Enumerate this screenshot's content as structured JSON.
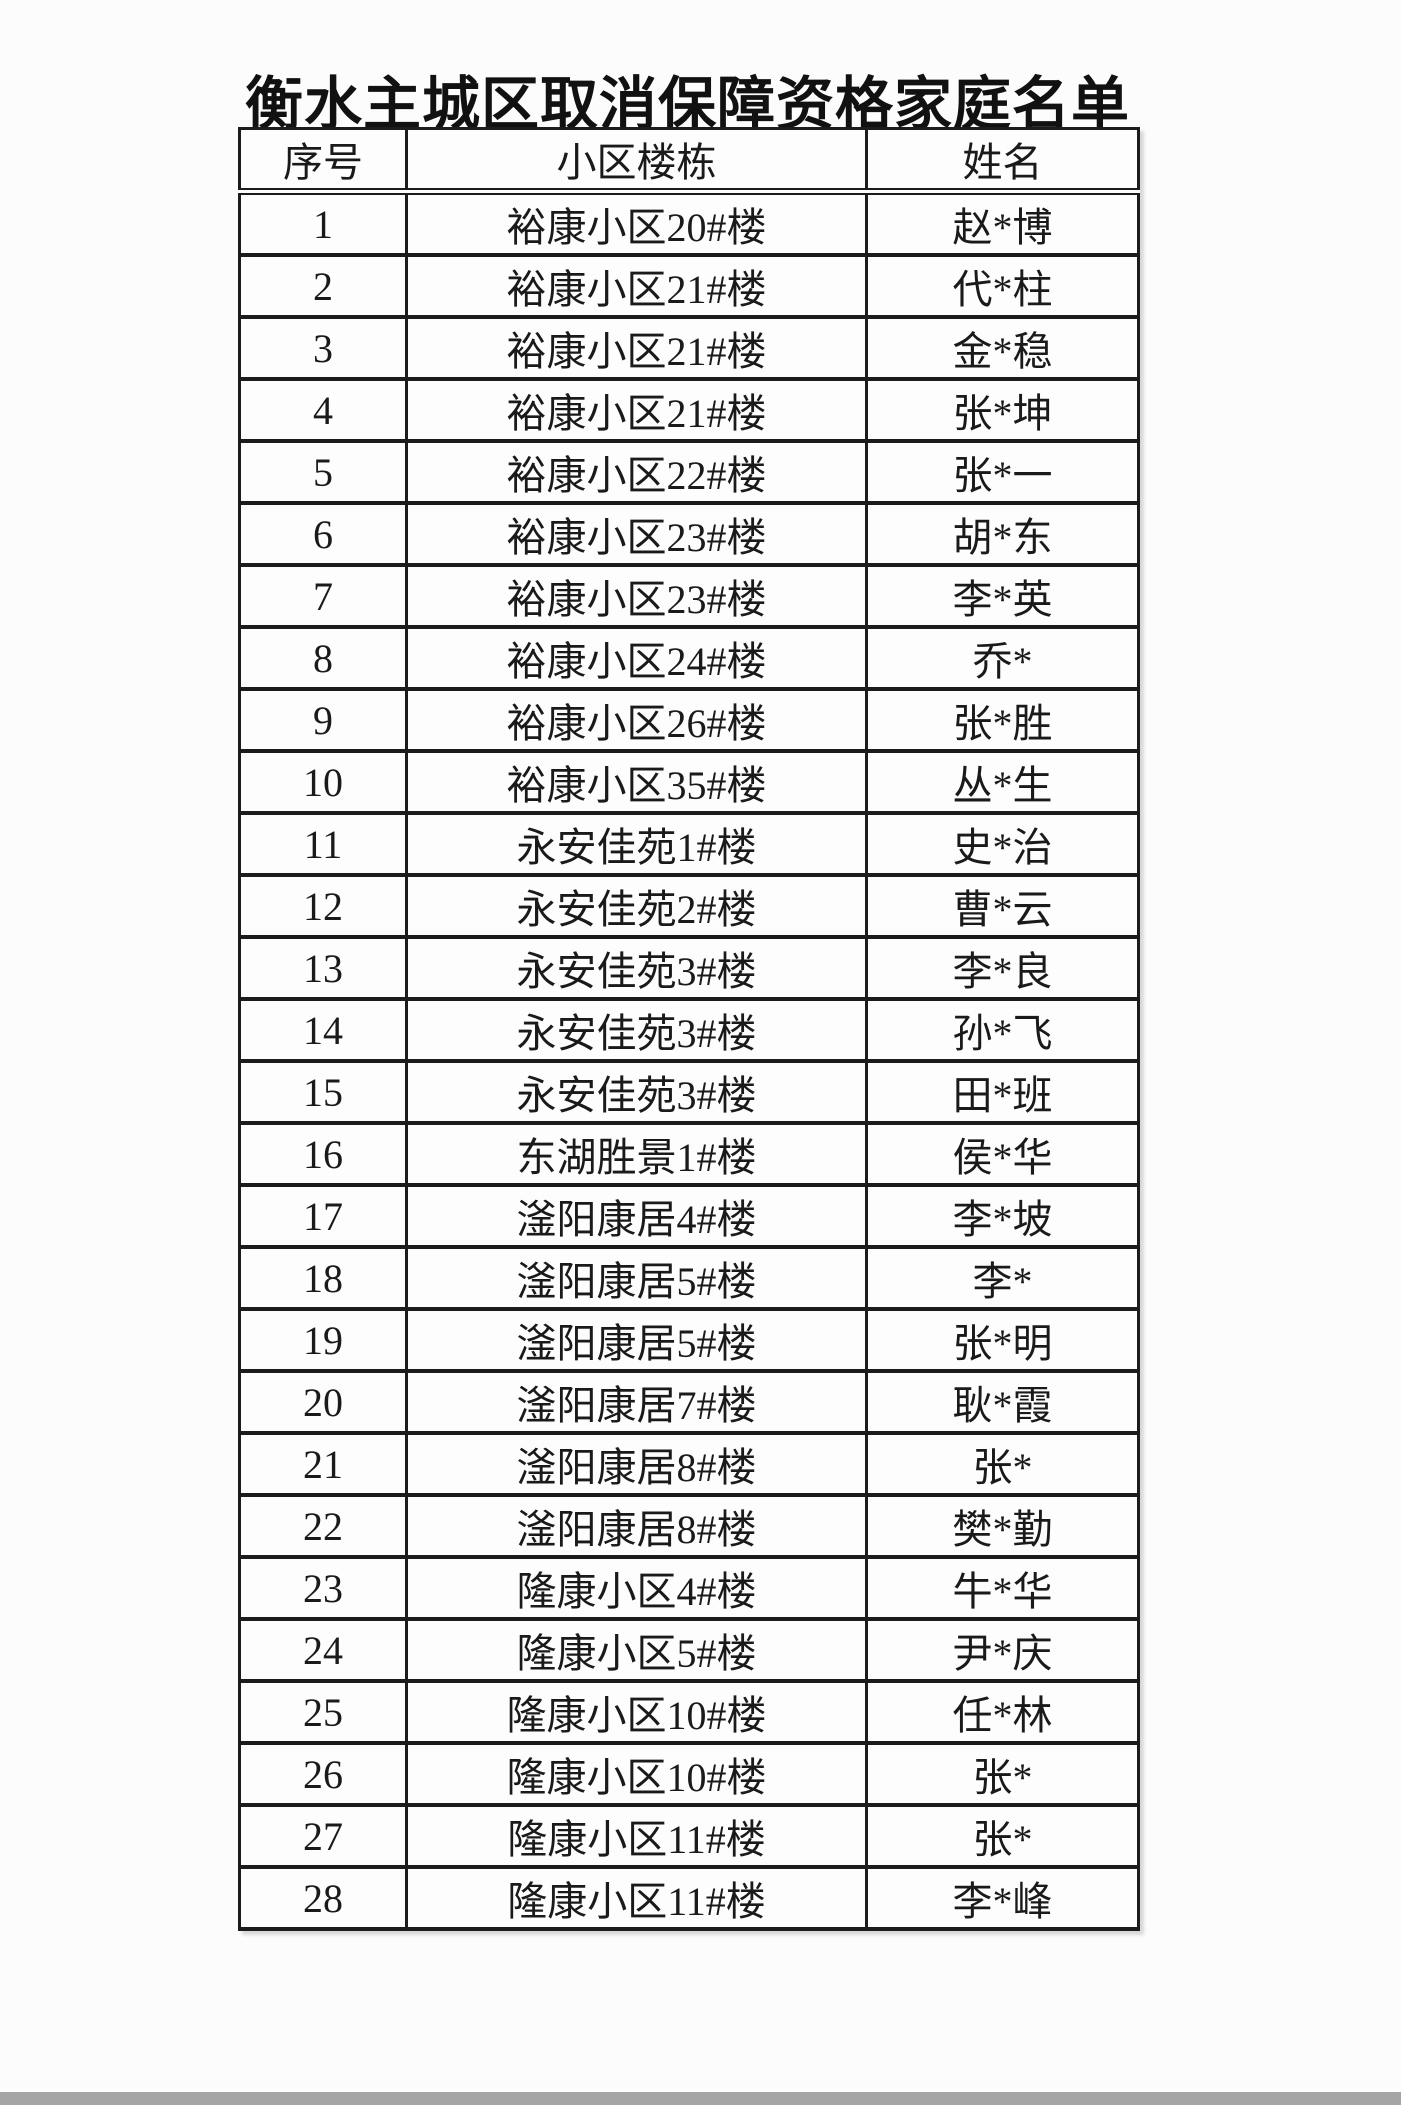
{
  "page": {
    "background_color": "#fcfcfc",
    "bottom_bar_color": "#a5a5a5",
    "border_color": "#1c1c1c"
  },
  "title": "衡水主城区取消保障资格家庭名单",
  "table": {
    "headers": {
      "no": "序号",
      "building": "小区楼栋",
      "name": "姓名"
    },
    "rows": [
      {
        "no": "1",
        "building": "裕康小区20#楼",
        "name": "赵*博"
      },
      {
        "no": "2",
        "building": "裕康小区21#楼",
        "name": "代*柱"
      },
      {
        "no": "3",
        "building": "裕康小区21#楼",
        "name": "金*稳"
      },
      {
        "no": "4",
        "building": "裕康小区21#楼",
        "name": "张*坤"
      },
      {
        "no": "5",
        "building": "裕康小区22#楼",
        "name": "张*一"
      },
      {
        "no": "6",
        "building": "裕康小区23#楼",
        "name": "胡*东"
      },
      {
        "no": "7",
        "building": "裕康小区23#楼",
        "name": "李*英"
      },
      {
        "no": "8",
        "building": "裕康小区24#楼",
        "name": "乔*"
      },
      {
        "no": "9",
        "building": "裕康小区26#楼",
        "name": "张*胜"
      },
      {
        "no": "10",
        "building": "裕康小区35#楼",
        "name": "丛*生"
      },
      {
        "no": "11",
        "building": "永安佳苑1#楼",
        "name": "史*治"
      },
      {
        "no": "12",
        "building": "永安佳苑2#楼",
        "name": "曹*云"
      },
      {
        "no": "13",
        "building": "永安佳苑3#楼",
        "name": "李*良"
      },
      {
        "no": "14",
        "building": "永安佳苑3#楼",
        "name": "孙*飞"
      },
      {
        "no": "15",
        "building": "永安佳苑3#楼",
        "name": "田*班"
      },
      {
        "no": "16",
        "building": "东湖胜景1#楼",
        "name": "侯*华"
      },
      {
        "no": "17",
        "building": "滏阳康居4#楼",
        "name": "李*坡"
      },
      {
        "no": "18",
        "building": "滏阳康居5#楼",
        "name": "李*"
      },
      {
        "no": "19",
        "building": "滏阳康居5#楼",
        "name": "张*明"
      },
      {
        "no": "20",
        "building": "滏阳康居7#楼",
        "name": "耿*霞"
      },
      {
        "no": "21",
        "building": "滏阳康居8#楼",
        "name": "张*"
      },
      {
        "no": "22",
        "building": "滏阳康居8#楼",
        "name": "樊*勤"
      },
      {
        "no": "23",
        "building": "隆康小区4#楼",
        "name": "牛*华"
      },
      {
        "no": "24",
        "building": "隆康小区5#楼",
        "name": "尹*庆"
      },
      {
        "no": "25",
        "building": "隆康小区10#楼",
        "name": "任*林"
      },
      {
        "no": "26",
        "building": "隆康小区10#楼",
        "name": "张*"
      },
      {
        "no": "27",
        "building": "隆康小区11#楼",
        "name": "张*"
      },
      {
        "no": "28",
        "building": "隆康小区11#楼",
        "name": "李*峰"
      }
    ]
  }
}
